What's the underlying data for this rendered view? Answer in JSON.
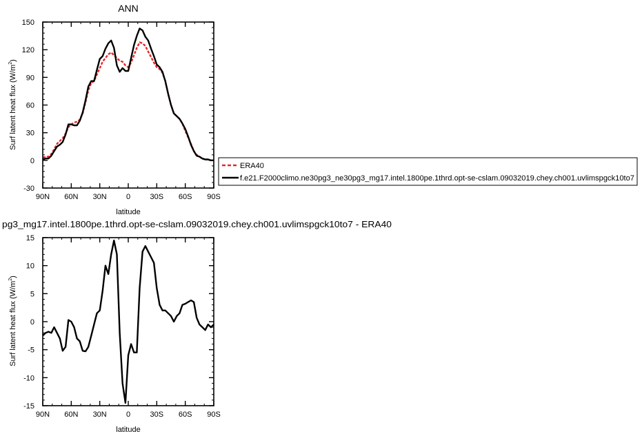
{
  "chart_data": [
    {
      "type": "line",
      "title": "ANN",
      "xlabel": "latitude",
      "ylabel": "Surf latent heat flux (W/m²)",
      "ylabel_main": "Surf latent heat flux (W/m",
      "ylabel_sup": "2",
      "ylabel_tail": ")",
      "xlim": [
        -90,
        90
      ],
      "ylim": [
        -30,
        150
      ],
      "x_ticks": [
        -90,
        -60,
        -30,
        0,
        30,
        60,
        90
      ],
      "x_tick_labels": [
        "90N",
        "60N",
        "30N",
        "0",
        "30S",
        "60S",
        "90S"
      ],
      "y_ticks": [
        -30,
        0,
        30,
        60,
        90,
        120,
        150
      ],
      "y_tick_labels": [
        "-30",
        "0",
        "30",
        "60",
        "90",
        "120",
        "150"
      ],
      "grid": false,
      "legend_position": "right",
      "series": [
        {
          "name": "ERA40",
          "color": "#e8262a",
          "dash": "dashed",
          "x": [
            -90,
            -87,
            -84,
            -81,
            -78,
            -75,
            -72,
            -69,
            -66,
            -63,
            -60,
            -57,
            -54,
            -51,
            -48,
            -45,
            -42,
            -39,
            -36,
            -33,
            -30,
            -27,
            -24,
            -21,
            -18,
            -15,
            -12,
            -9,
            -6,
            -3,
            0,
            3,
            6,
            9,
            12,
            15,
            18,
            21,
            24,
            27,
            30,
            33,
            36,
            39,
            42,
            45,
            48,
            51,
            54,
            57,
            60,
            63,
            66,
            69,
            72,
            75,
            78,
            81,
            84,
            87,
            90
          ],
          "y": [
            3,
            4,
            4,
            7,
            12,
            18,
            21,
            24,
            29,
            36,
            39,
            41,
            42,
            44,
            51,
            63,
            76,
            84,
            86,
            93,
            100,
            107,
            111,
            115,
            117,
            114,
            111,
            108,
            107,
            103,
            101,
            106,
            114,
            122,
            128,
            127,
            124,
            118,
            112,
            106,
            101,
            99,
            95,
            86,
            72,
            60,
            51,
            48,
            45,
            40,
            32,
            25,
            18,
            10,
            6,
            4,
            2,
            1,
            1,
            0,
            0
          ]
        },
        {
          "name": "f.e21.F2000climo.ne30pg3_ne30pg3_mg17.intel.1800pe.1thrd.opt-se-cslam.09032019.chey.ch001.uvlimspgck10to7",
          "color": "#000000",
          "dash": "solid",
          "x": [
            -90,
            -87,
            -84,
            -81,
            -78,
            -75,
            -72,
            -69,
            -66,
            -63,
            -60,
            -57,
            -54,
            -51,
            -48,
            -45,
            -42,
            -39,
            -36,
            -33,
            -30,
            -27,
            -24,
            -21,
            -18,
            -15,
            -12,
            -9,
            -6,
            -3,
            0,
            3,
            6,
            9,
            12,
            15,
            18,
            21,
            24,
            27,
            30,
            33,
            36,
            39,
            42,
            45,
            48,
            51,
            54,
            57,
            60,
            63,
            66,
            69,
            72,
            75,
            78,
            81,
            84,
            87,
            90
          ],
          "y": [
            1,
            2,
            2,
            5,
            10,
            15,
            17,
            20,
            28,
            39,
            39,
            38,
            38,
            43,
            52,
            65,
            80,
            86,
            86,
            98,
            110,
            113,
            121,
            127,
            130,
            122,
            103,
            96,
            100,
            97,
            97,
            111,
            125,
            135,
            143,
            141,
            134,
            130,
            121,
            113,
            104,
            101,
            96,
            86,
            72,
            60,
            51,
            48,
            45,
            40,
            34,
            26,
            17,
            10,
            5,
            4,
            2,
            1,
            1,
            0,
            0
          ]
        }
      ]
    },
    {
      "type": "line",
      "title": "pg3_mg17.intel.1800pe.1thrd.opt-se-cslam.09032019.chey.ch001.uvlimspgck10to7 - ERA40",
      "xlabel": "latitude",
      "ylabel": "Surf latent heat flux (W/m²)",
      "ylabel_main": "Surf latent heat flux (W/m",
      "ylabel_sup": "2",
      "ylabel_tail": ")",
      "xlim": [
        -90,
        90
      ],
      "ylim": [
        -15,
        15
      ],
      "x_ticks": [
        -90,
        -60,
        -30,
        0,
        30,
        60,
        90
      ],
      "x_tick_labels": [
        "90N",
        "60N",
        "30N",
        "0",
        "30S",
        "60S",
        "90S"
      ],
      "y_ticks": [
        -15,
        -10,
        -5,
        0,
        5,
        10,
        15
      ],
      "y_tick_labels": [
        "-15",
        "-10",
        "-5",
        "0",
        "5",
        "10",
        "15"
      ],
      "grid": false,
      "series": [
        {
          "color": "#000000",
          "dash": "solid",
          "x": [
            -90,
            -87,
            -84,
            -81,
            -78,
            -75,
            -72,
            -69,
            -66,
            -63,
            -60,
            -57,
            -54,
            -51,
            -48,
            -45,
            -42,
            -39,
            -36,
            -33,
            -30,
            -27,
            -24,
            -21,
            -18,
            -15,
            -12,
            -9,
            -6,
            -3,
            0,
            3,
            6,
            9,
            12,
            15,
            18,
            21,
            24,
            27,
            30,
            33,
            36,
            39,
            42,
            45,
            48,
            51,
            54,
            57,
            60,
            63,
            66,
            69,
            72,
            75,
            78,
            81,
            84,
            87,
            90
          ],
          "y": [
            -2.5,
            -2,
            -1.8,
            -2,
            -1,
            -2,
            -3,
            -5.2,
            -4.5,
            0.3,
            0,
            -1,
            -3,
            -3.5,
            -5.2,
            -5.3,
            -4.5,
            -2.5,
            -0.5,
            1.5,
            2,
            5.5,
            10,
            8.5,
            12,
            14.5,
            12,
            -2,
            -11,
            -14.5,
            -6,
            -4,
            -5.5,
            -5.5,
            6,
            12.5,
            13.5,
            12.5,
            11.5,
            10.5,
            6,
            3,
            2,
            2,
            1.5,
            1,
            0,
            1,
            1.5,
            3,
            3.2,
            3.5,
            3.8,
            3.5,
            0.7,
            -0.5,
            -1,
            -1.5,
            -0.5,
            -1,
            -0.5
          ]
        }
      ]
    }
  ]
}
